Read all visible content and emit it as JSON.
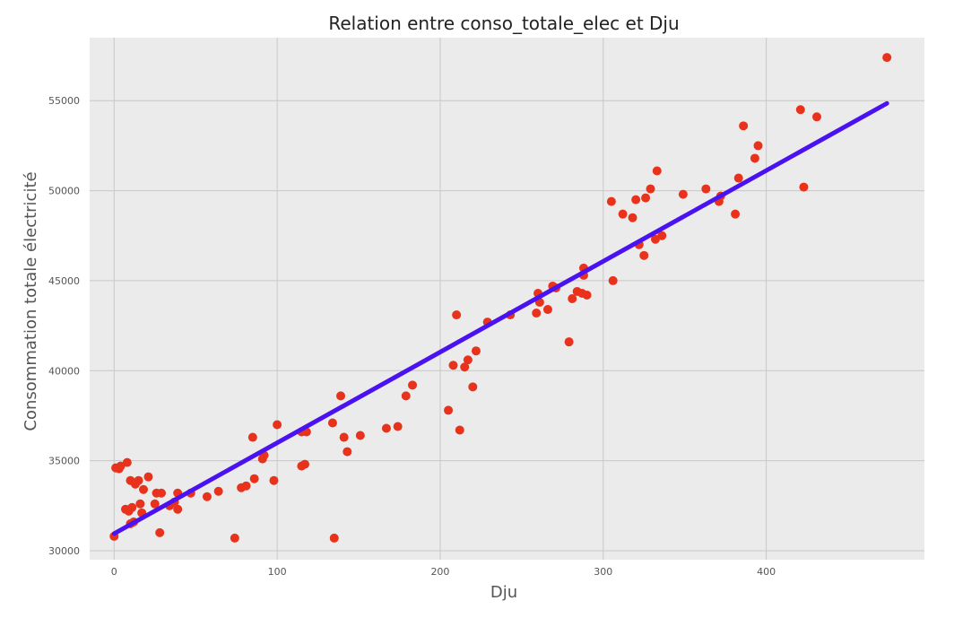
{
  "chart_data": {
    "type": "scatter",
    "title": "Relation entre conso_totale_elec et Dju",
    "xlabel": "Dju",
    "ylabel": "Consommation totale électricité",
    "xlim": [
      -15,
      497
    ],
    "ylim": [
      29500,
      58500
    ],
    "xticks": [
      0,
      100,
      200,
      300,
      400
    ],
    "yticks": [
      30000,
      35000,
      40000,
      45000,
      50000,
      55000
    ],
    "xtick_labels": [
      "0",
      "100",
      "200",
      "300",
      "400"
    ],
    "ytick_labels": [
      "30000",
      "35000",
      "40000",
      "45000",
      "50000",
      "55000"
    ],
    "grid": true,
    "background": "#ebebeb",
    "point_color": "#e8321c",
    "line_color": "#4a12f0",
    "regression_line": {
      "x": [
        0,
        474
      ],
      "y": [
        30950,
        54850
      ]
    },
    "points": [
      {
        "x": 0,
        "y": 30800
      },
      {
        "x": 1,
        "y": 34600
      },
      {
        "x": 3,
        "y": 34550
      },
      {
        "x": 4,
        "y": 34700
      },
      {
        "x": 7,
        "y": 32300
      },
      {
        "x": 8,
        "y": 34900
      },
      {
        "x": 9,
        "y": 32200
      },
      {
        "x": 10,
        "y": 31500
      },
      {
        "x": 11,
        "y": 32400
      },
      {
        "x": 10,
        "y": 33900
      },
      {
        "x": 12,
        "y": 31600
      },
      {
        "x": 13,
        "y": 33700
      },
      {
        "x": 15,
        "y": 33900
      },
      {
        "x": 16,
        "y": 32600
      },
      {
        "x": 17,
        "y": 32100
      },
      {
        "x": 18,
        "y": 33400
      },
      {
        "x": 21,
        "y": 34100
      },
      {
        "x": 25,
        "y": 32600
      },
      {
        "x": 26,
        "y": 33200
      },
      {
        "x": 28,
        "y": 31000
      },
      {
        "x": 29,
        "y": 33200
      },
      {
        "x": 34,
        "y": 32500
      },
      {
        "x": 37,
        "y": 32700
      },
      {
        "x": 39,
        "y": 33200
      },
      {
        "x": 39,
        "y": 32300
      },
      {
        "x": 47,
        "y": 33200
      },
      {
        "x": 57,
        "y": 33000
      },
      {
        "x": 64,
        "y": 33300
      },
      {
        "x": 74,
        "y": 30700
      },
      {
        "x": 78,
        "y": 33500
      },
      {
        "x": 81,
        "y": 33600
      },
      {
        "x": 85,
        "y": 36300
      },
      {
        "x": 86,
        "y": 34000
      },
      {
        "x": 91,
        "y": 35100
      },
      {
        "x": 92,
        "y": 35300
      },
      {
        "x": 98,
        "y": 33900
      },
      {
        "x": 100,
        "y": 37000
      },
      {
        "x": 115,
        "y": 34700
      },
      {
        "x": 115,
        "y": 36600
      },
      {
        "x": 117,
        "y": 34800
      },
      {
        "x": 118,
        "y": 36600
      },
      {
        "x": 134,
        "y": 37100
      },
      {
        "x": 135,
        "y": 30700
      },
      {
        "x": 139,
        "y": 38600
      },
      {
        "x": 141,
        "y": 36300
      },
      {
        "x": 143,
        "y": 35500
      },
      {
        "x": 151,
        "y": 36400
      },
      {
        "x": 167,
        "y": 36800
      },
      {
        "x": 174,
        "y": 36900
      },
      {
        "x": 179,
        "y": 38600
      },
      {
        "x": 183,
        "y": 39200
      },
      {
        "x": 205,
        "y": 37800
      },
      {
        "x": 208,
        "y": 40300
      },
      {
        "x": 210,
        "y": 43100
      },
      {
        "x": 212,
        "y": 36700
      },
      {
        "x": 215,
        "y": 40200
      },
      {
        "x": 217,
        "y": 40600
      },
      {
        "x": 220,
        "y": 39100
      },
      {
        "x": 222,
        "y": 41100
      },
      {
        "x": 229,
        "y": 42700
      },
      {
        "x": 243,
        "y": 43100
      },
      {
        "x": 259,
        "y": 43200
      },
      {
        "x": 260,
        "y": 44300
      },
      {
        "x": 261,
        "y": 43800
      },
      {
        "x": 266,
        "y": 43400
      },
      {
        "x": 269,
        "y": 44700
      },
      {
        "x": 271,
        "y": 44600
      },
      {
        "x": 279,
        "y": 41600
      },
      {
        "x": 281,
        "y": 44000
      },
      {
        "x": 284,
        "y": 44400
      },
      {
        "x": 287,
        "y": 44300
      },
      {
        "x": 288,
        "y": 45700
      },
      {
        "x": 288,
        "y": 45300
      },
      {
        "x": 290,
        "y": 44200
      },
      {
        "x": 305,
        "y": 49400
      },
      {
        "x": 306,
        "y": 45000
      },
      {
        "x": 312,
        "y": 48700
      },
      {
        "x": 318,
        "y": 48500
      },
      {
        "x": 320,
        "y": 49500
      },
      {
        "x": 322,
        "y": 47000
      },
      {
        "x": 325,
        "y": 46400
      },
      {
        "x": 326,
        "y": 49600
      },
      {
        "x": 329,
        "y": 50100
      },
      {
        "x": 332,
        "y": 47300
      },
      {
        "x": 333,
        "y": 51100
      },
      {
        "x": 336,
        "y": 47500
      },
      {
        "x": 349,
        "y": 49800
      },
      {
        "x": 363,
        "y": 50100
      },
      {
        "x": 371,
        "y": 49400
      },
      {
        "x": 372,
        "y": 49700
      },
      {
        "x": 381,
        "y": 48700
      },
      {
        "x": 383,
        "y": 50700
      },
      {
        "x": 386,
        "y": 53600
      },
      {
        "x": 393,
        "y": 51800
      },
      {
        "x": 395,
        "y": 52500
      },
      {
        "x": 421,
        "y": 54500
      },
      {
        "x": 423,
        "y": 50200
      },
      {
        "x": 431,
        "y": 54100
      },
      {
        "x": 474,
        "y": 57400
      }
    ]
  }
}
